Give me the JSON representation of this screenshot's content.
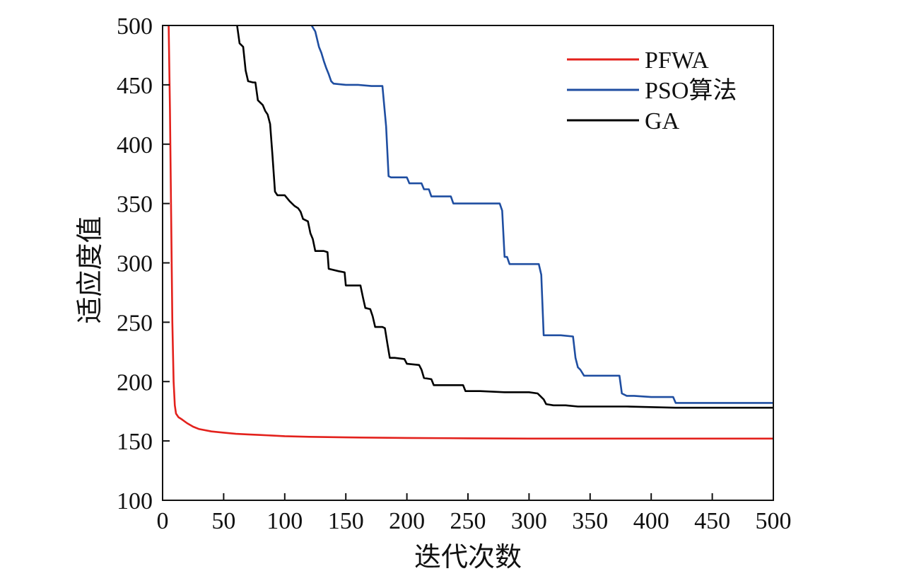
{
  "chart_data": {
    "type": "line",
    "title": "",
    "xlabel": "迭代次数",
    "ylabel": "适应度值",
    "xlim": [
      0,
      500
    ],
    "ylim": [
      100,
      500
    ],
    "xticks": [
      0,
      50,
      100,
      150,
      200,
      250,
      300,
      350,
      400,
      450,
      500
    ],
    "yticks": [
      100,
      150,
      200,
      250,
      300,
      350,
      400,
      450,
      500
    ],
    "grid": false,
    "legend_position": "top-right",
    "series": [
      {
        "name": "PFWA",
        "color": "#e3211c",
        "points": [
          [
            5,
            500
          ],
          [
            6,
            430
          ],
          [
            7,
            340
          ],
          [
            8,
            250
          ],
          [
            9,
            200
          ],
          [
            10,
            180
          ],
          [
            11,
            173
          ],
          [
            13,
            170
          ],
          [
            16,
            168
          ],
          [
            20,
            165
          ],
          [
            25,
            162
          ],
          [
            30,
            160
          ],
          [
            40,
            158
          ],
          [
            50,
            157
          ],
          [
            60,
            156
          ],
          [
            70,
            155.5
          ],
          [
            80,
            155
          ],
          [
            100,
            154
          ],
          [
            120,
            153.5
          ],
          [
            150,
            153
          ],
          [
            200,
            152.5
          ],
          [
            250,
            152.2
          ],
          [
            300,
            152
          ],
          [
            400,
            152
          ],
          [
            500,
            152
          ]
        ]
      },
      {
        "name": "PSO算法",
        "color": "#1f4ea1",
        "points": [
          [
            122,
            500
          ],
          [
            125,
            495
          ],
          [
            128,
            482
          ],
          [
            130,
            477
          ],
          [
            132,
            470
          ],
          [
            134,
            464
          ],
          [
            136,
            459
          ],
          [
            138,
            453
          ],
          [
            140,
            451
          ],
          [
            150,
            450
          ],
          [
            160,
            450
          ],
          [
            171,
            449
          ],
          [
            180,
            449
          ],
          [
            183,
            415
          ],
          [
            185,
            373
          ],
          [
            187,
            372
          ],
          [
            193,
            372
          ],
          [
            200,
            372
          ],
          [
            202,
            367
          ],
          [
            208,
            367
          ],
          [
            212,
            367
          ],
          [
            214,
            362
          ],
          [
            218,
            362
          ],
          [
            220,
            356
          ],
          [
            225,
            356
          ],
          [
            236,
            356
          ],
          [
            238,
            350
          ],
          [
            250,
            350
          ],
          [
            260,
            350
          ],
          [
            276,
            350
          ],
          [
            278,
            344
          ],
          [
            280,
            305
          ],
          [
            282,
            305
          ],
          [
            284,
            299
          ],
          [
            290,
            299
          ],
          [
            300,
            299
          ],
          [
            308,
            299
          ],
          [
            310,
            290
          ],
          [
            312,
            239
          ],
          [
            316,
            239
          ],
          [
            326,
            239
          ],
          [
            336,
            238
          ],
          [
            338,
            220
          ],
          [
            340,
            212
          ],
          [
            342,
            210
          ],
          [
            345,
            205
          ],
          [
            350,
            205
          ],
          [
            360,
            205
          ],
          [
            374,
            205
          ],
          [
            376,
            190
          ],
          [
            380,
            188
          ],
          [
            386,
            188
          ],
          [
            400,
            187
          ],
          [
            418,
            187
          ],
          [
            420,
            182
          ],
          [
            430,
            182
          ],
          [
            450,
            182
          ],
          [
            500,
            182
          ]
        ]
      },
      {
        "name": "GA",
        "color": "#000000",
        "points": [
          [
            61,
            500
          ],
          [
            63,
            485
          ],
          [
            66,
            482
          ],
          [
            68,
            462
          ],
          [
            70,
            453
          ],
          [
            74,
            452
          ],
          [
            76,
            452
          ],
          [
            78,
            437
          ],
          [
            82,
            433
          ],
          [
            84,
            428
          ],
          [
            86,
            425
          ],
          [
            88,
            417
          ],
          [
            90,
            390
          ],
          [
            92,
            360
          ],
          [
            94,
            357
          ],
          [
            100,
            357
          ],
          [
            104,
            352
          ],
          [
            108,
            348
          ],
          [
            111,
            346
          ],
          [
            113,
            343
          ],
          [
            115,
            337
          ],
          [
            119,
            335
          ],
          [
            121,
            325
          ],
          [
            123,
            320
          ],
          [
            125,
            310
          ],
          [
            132,
            310
          ],
          [
            135,
            309
          ],
          [
            136,
            295
          ],
          [
            144,
            293
          ],
          [
            149,
            292
          ],
          [
            150,
            281
          ],
          [
            158,
            281
          ],
          [
            162,
            281
          ],
          [
            164,
            271
          ],
          [
            166,
            262
          ],
          [
            170,
            261
          ],
          [
            172,
            255
          ],
          [
            174,
            246
          ],
          [
            180,
            246
          ],
          [
            182,
            245
          ],
          [
            184,
            232
          ],
          [
            186,
            220
          ],
          [
            190,
            220
          ],
          [
            198,
            219
          ],
          [
            200,
            215
          ],
          [
            210,
            214
          ],
          [
            212,
            210
          ],
          [
            214,
            203
          ],
          [
            220,
            202
          ],
          [
            222,
            197
          ],
          [
            230,
            197
          ],
          [
            240,
            197
          ],
          [
            246,
            197
          ],
          [
            248,
            192
          ],
          [
            260,
            192
          ],
          [
            280,
            191
          ],
          [
            300,
            191
          ],
          [
            307,
            190
          ],
          [
            310,
            187
          ],
          [
            312,
            185
          ],
          [
            314,
            181
          ],
          [
            320,
            180
          ],
          [
            330,
            180
          ],
          [
            340,
            179
          ],
          [
            380,
            179
          ],
          [
            420,
            178
          ],
          [
            460,
            178
          ],
          [
            500,
            178
          ]
        ]
      }
    ]
  }
}
